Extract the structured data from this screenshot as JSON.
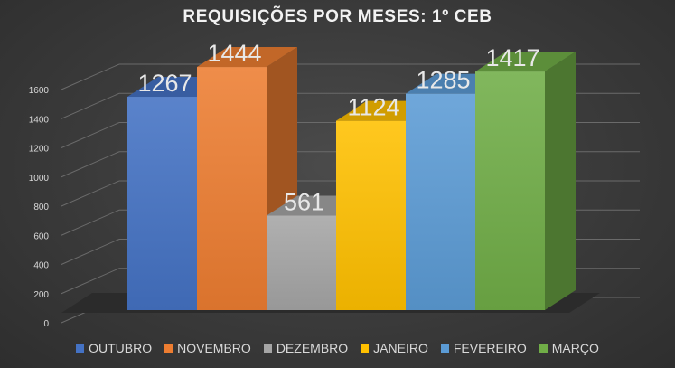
{
  "chart_data": {
    "type": "bar",
    "title": "REQUISIÇÕES POR MESES: 1º CEB",
    "categories": [
      "OUTUBRO",
      "NOVEMBRO",
      "DEZEMBRO",
      "JANEIRO",
      "FEVEREIRO",
      "MARÇO"
    ],
    "values": [
      1267,
      1444,
      561,
      1124,
      1285,
      1417
    ],
    "colors": [
      "#4472c4",
      "#ed7d31",
      "#a5a5a5",
      "#ffc000",
      "#5b9bd5",
      "#70ad47"
    ],
    "ylim": [
      0,
      1600
    ],
    "yticks": [
      "0",
      "200",
      "400",
      "600",
      "800",
      "1000",
      "1200",
      "1400",
      "1600"
    ],
    "grid": true,
    "legend": "bottom",
    "style": "3d-column"
  }
}
